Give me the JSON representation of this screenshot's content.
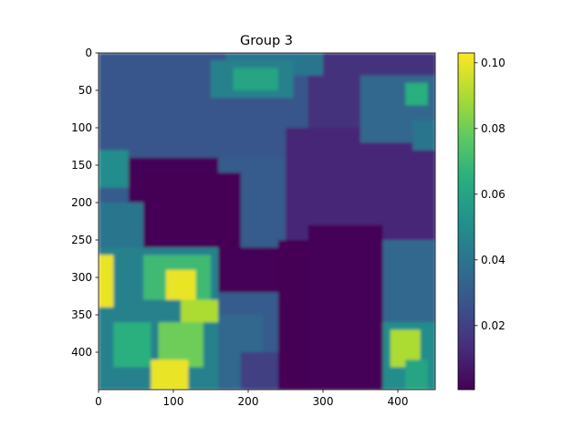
{
  "chart_data": {
    "type": "heatmap",
    "title": "Group 3",
    "xlabel": "",
    "ylabel": "",
    "colormap": "viridis",
    "xlim": [
      0,
      450
    ],
    "ylim": [
      450,
      0
    ],
    "x_ticks": [
      0,
      100,
      200,
      300,
      400
    ],
    "y_ticks": [
      0,
      50,
      100,
      150,
      200,
      250,
      300,
      350,
      400
    ],
    "x_tick_labels": [
      "0",
      "100",
      "200",
      "300",
      "400"
    ],
    "y_tick_labels": [
      "0",
      "50",
      "100",
      "150",
      "200",
      "250",
      "300",
      "350",
      "400"
    ],
    "colorbar": {
      "range": [
        0.0005,
        0.103
      ],
      "ticks": [
        0.02,
        0.04,
        0.06,
        0.08,
        0.1
      ],
      "tick_labels": [
        "0.02",
        "0.04",
        "0.06",
        "0.08",
        "0.10"
      ]
    },
    "grid": false,
    "cell_size": 10,
    "grid_shape": [
      45,
      45
    ],
    "regions": [
      {
        "kind": "base",
        "value": 0.03
      },
      {
        "kind": "rect",
        "x": [
          0,
          450
        ],
        "y": [
          0,
          140
        ],
        "value": 0.028
      },
      {
        "kind": "rect",
        "x": [
          280,
          450
        ],
        "y": [
          0,
          250
        ],
        "value": 0.015
      },
      {
        "kind": "rect",
        "x": [
          250,
          450
        ],
        "y": [
          100,
          250
        ],
        "value": 0.012
      },
      {
        "kind": "rect",
        "x": [
          170,
          300
        ],
        "y": [
          0,
          30
        ],
        "value": 0.04
      },
      {
        "kind": "rect",
        "x": [
          150,
          260
        ],
        "y": [
          10,
          60
        ],
        "value": 0.045
      },
      {
        "kind": "rect",
        "x": [
          180,
          240
        ],
        "y": [
          20,
          50
        ],
        "value": 0.06
      },
      {
        "kind": "rect",
        "x": [
          0,
          40
        ],
        "y": [
          130,
          180
        ],
        "value": 0.05
      },
      {
        "kind": "rect",
        "x": [
          40,
          160
        ],
        "y": [
          140,
          260
        ],
        "value": 0.002
      },
      {
        "kind": "rect",
        "x": [
          60,
          190
        ],
        "y": [
          160,
          280
        ],
        "value": 0.001
      },
      {
        "kind": "rect",
        "x": [
          150,
          240
        ],
        "y": [
          260,
          320
        ],
        "value": 0.002
      },
      {
        "kind": "rect",
        "x": [
          0,
          60
        ],
        "y": [
          200,
          280
        ],
        "value": 0.04
      },
      {
        "kind": "rect",
        "x": [
          0,
          160
        ],
        "y": [
          260,
          450
        ],
        "value": 0.045
      },
      {
        "kind": "rect",
        "x": [
          0,
          20
        ],
        "y": [
          270,
          340
        ],
        "value": 0.1
      },
      {
        "kind": "rect",
        "x": [
          60,
          150
        ],
        "y": [
          270,
          330
        ],
        "value": 0.07
      },
      {
        "kind": "rect",
        "x": [
          90,
          130
        ],
        "y": [
          290,
          330
        ],
        "value": 0.1
      },
      {
        "kind": "rect",
        "x": [
          110,
          160
        ],
        "y": [
          330,
          360
        ],
        "value": 0.09
      },
      {
        "kind": "rect",
        "x": [
          80,
          140
        ],
        "y": [
          360,
          420
        ],
        "value": 0.08
      },
      {
        "kind": "rect",
        "x": [
          70,
          120
        ],
        "y": [
          410,
          450
        ],
        "value": 0.1
      },
      {
        "kind": "rect",
        "x": [
          20,
          70
        ],
        "y": [
          360,
          420
        ],
        "value": 0.065
      },
      {
        "kind": "rect",
        "x": [
          160,
          220
        ],
        "y": [
          350,
          450
        ],
        "value": 0.035
      },
      {
        "kind": "rect",
        "x": [
          190,
          250
        ],
        "y": [
          400,
          450
        ],
        "value": 0.02
      },
      {
        "kind": "rect",
        "x": [
          240,
          380
        ],
        "y": [
          250,
          450
        ],
        "value": 0.001
      },
      {
        "kind": "rect",
        "x": [
          280,
          380
        ],
        "y": [
          230,
          450
        ],
        "value": 0.002
      },
      {
        "kind": "rect",
        "x": [
          380,
          450
        ],
        "y": [
          250,
          360
        ],
        "value": 0.035
      },
      {
        "kind": "rect",
        "x": [
          380,
          450
        ],
        "y": [
          360,
          450
        ],
        "value": 0.05
      },
      {
        "kind": "rect",
        "x": [
          390,
          430
        ],
        "y": [
          370,
          420
        ],
        "value": 0.09
      },
      {
        "kind": "rect",
        "x": [
          410,
          440
        ],
        "y": [
          410,
          450
        ],
        "value": 0.06
      },
      {
        "kind": "rect",
        "x": [
          350,
          450
        ],
        "y": [
          30,
          120
        ],
        "value": 0.035
      },
      {
        "kind": "rect",
        "x": [
          410,
          440
        ],
        "y": [
          40,
          70
        ],
        "value": 0.065
      },
      {
        "kind": "rect",
        "x": [
          420,
          450
        ],
        "y": [
          90,
          130
        ],
        "value": 0.04
      }
    ]
  }
}
